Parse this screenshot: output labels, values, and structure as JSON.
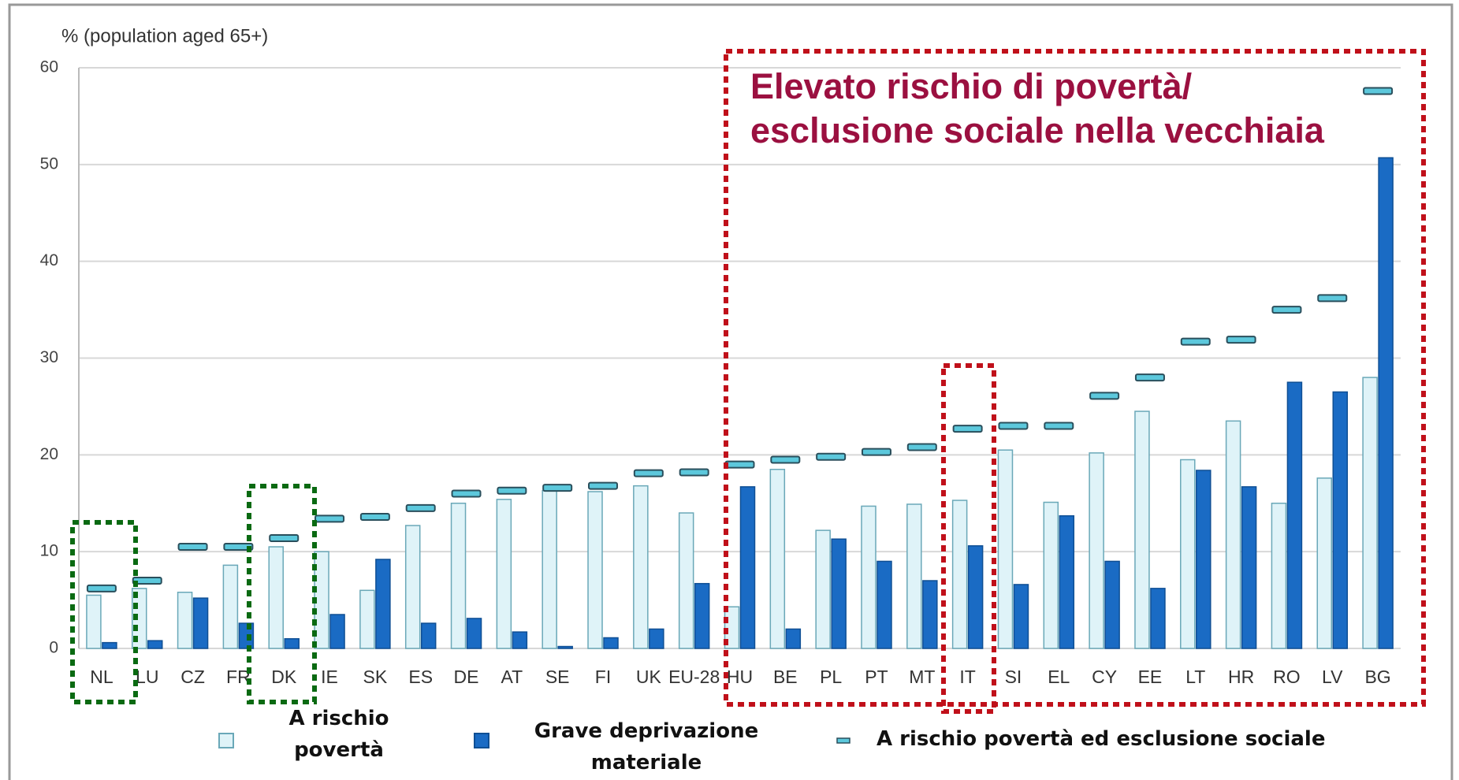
{
  "chart_data": {
    "type": "bar",
    "y_axis_label": "% (population aged 65+)",
    "annotation": "Elevato rischio di povertà/ esclusione sociale nella vecchiaia",
    "categories": [
      "NL",
      "LU",
      "CZ",
      "FR",
      "DK",
      "IE",
      "SK",
      "ES",
      "DE",
      "AT",
      "SE",
      "FI",
      "UK",
      "EU-28",
      "HU",
      "BE",
      "PL",
      "PT",
      "MT",
      "IT",
      "SI",
      "EL",
      "CY",
      "EE",
      "LT",
      "HR",
      "RO",
      "LV",
      "BG"
    ],
    "series": [
      {
        "name": "A rischio povertà",
        "color": "#dff3f8",
        "kind": "bar",
        "values": [
          5.5,
          6.2,
          5.8,
          8.6,
          10.5,
          10,
          6,
          12.7,
          15,
          15.4,
          16.3,
          16.2,
          16.8,
          14,
          4.3,
          18.5,
          12.2,
          14.7,
          14.9,
          15.3,
          20.5,
          15.1,
          20.2,
          24.5,
          19.5,
          23.5,
          15,
          17.6,
          28
        ]
      },
      {
        "name": "Grave deprivazione materiale",
        "color": "#1a6bc4",
        "kind": "bar",
        "values": [
          0.6,
          0.8,
          5.2,
          2.6,
          1,
          3.5,
          9.2,
          2.6,
          3.1,
          1.7,
          0.2,
          1.1,
          2,
          6.7,
          16.7,
          2,
          11.3,
          9,
          7,
          10.6,
          6.6,
          13.7,
          9,
          6.2,
          18.4,
          16.7,
          27.5,
          26.5,
          50.7
        ]
      },
      {
        "name": "A rischio povertà ed esclusione sociale",
        "color": "#5cc8dc",
        "kind": "marker",
        "values": [
          6.2,
          7,
          10.5,
          10.5,
          11.4,
          13.4,
          13.6,
          14.5,
          16,
          16.3,
          16.6,
          16.8,
          18.1,
          18.2,
          19,
          19.5,
          19.8,
          20.3,
          20.8,
          22.7,
          23,
          23,
          26.1,
          28,
          31.7,
          31.9,
          35,
          36.2,
          57.6
        ]
      }
    ],
    "ylim": [
      0,
      60
    ],
    "yticks": [
      0,
      10,
      20,
      30,
      40,
      50,
      60
    ],
    "grid": true
  }
}
